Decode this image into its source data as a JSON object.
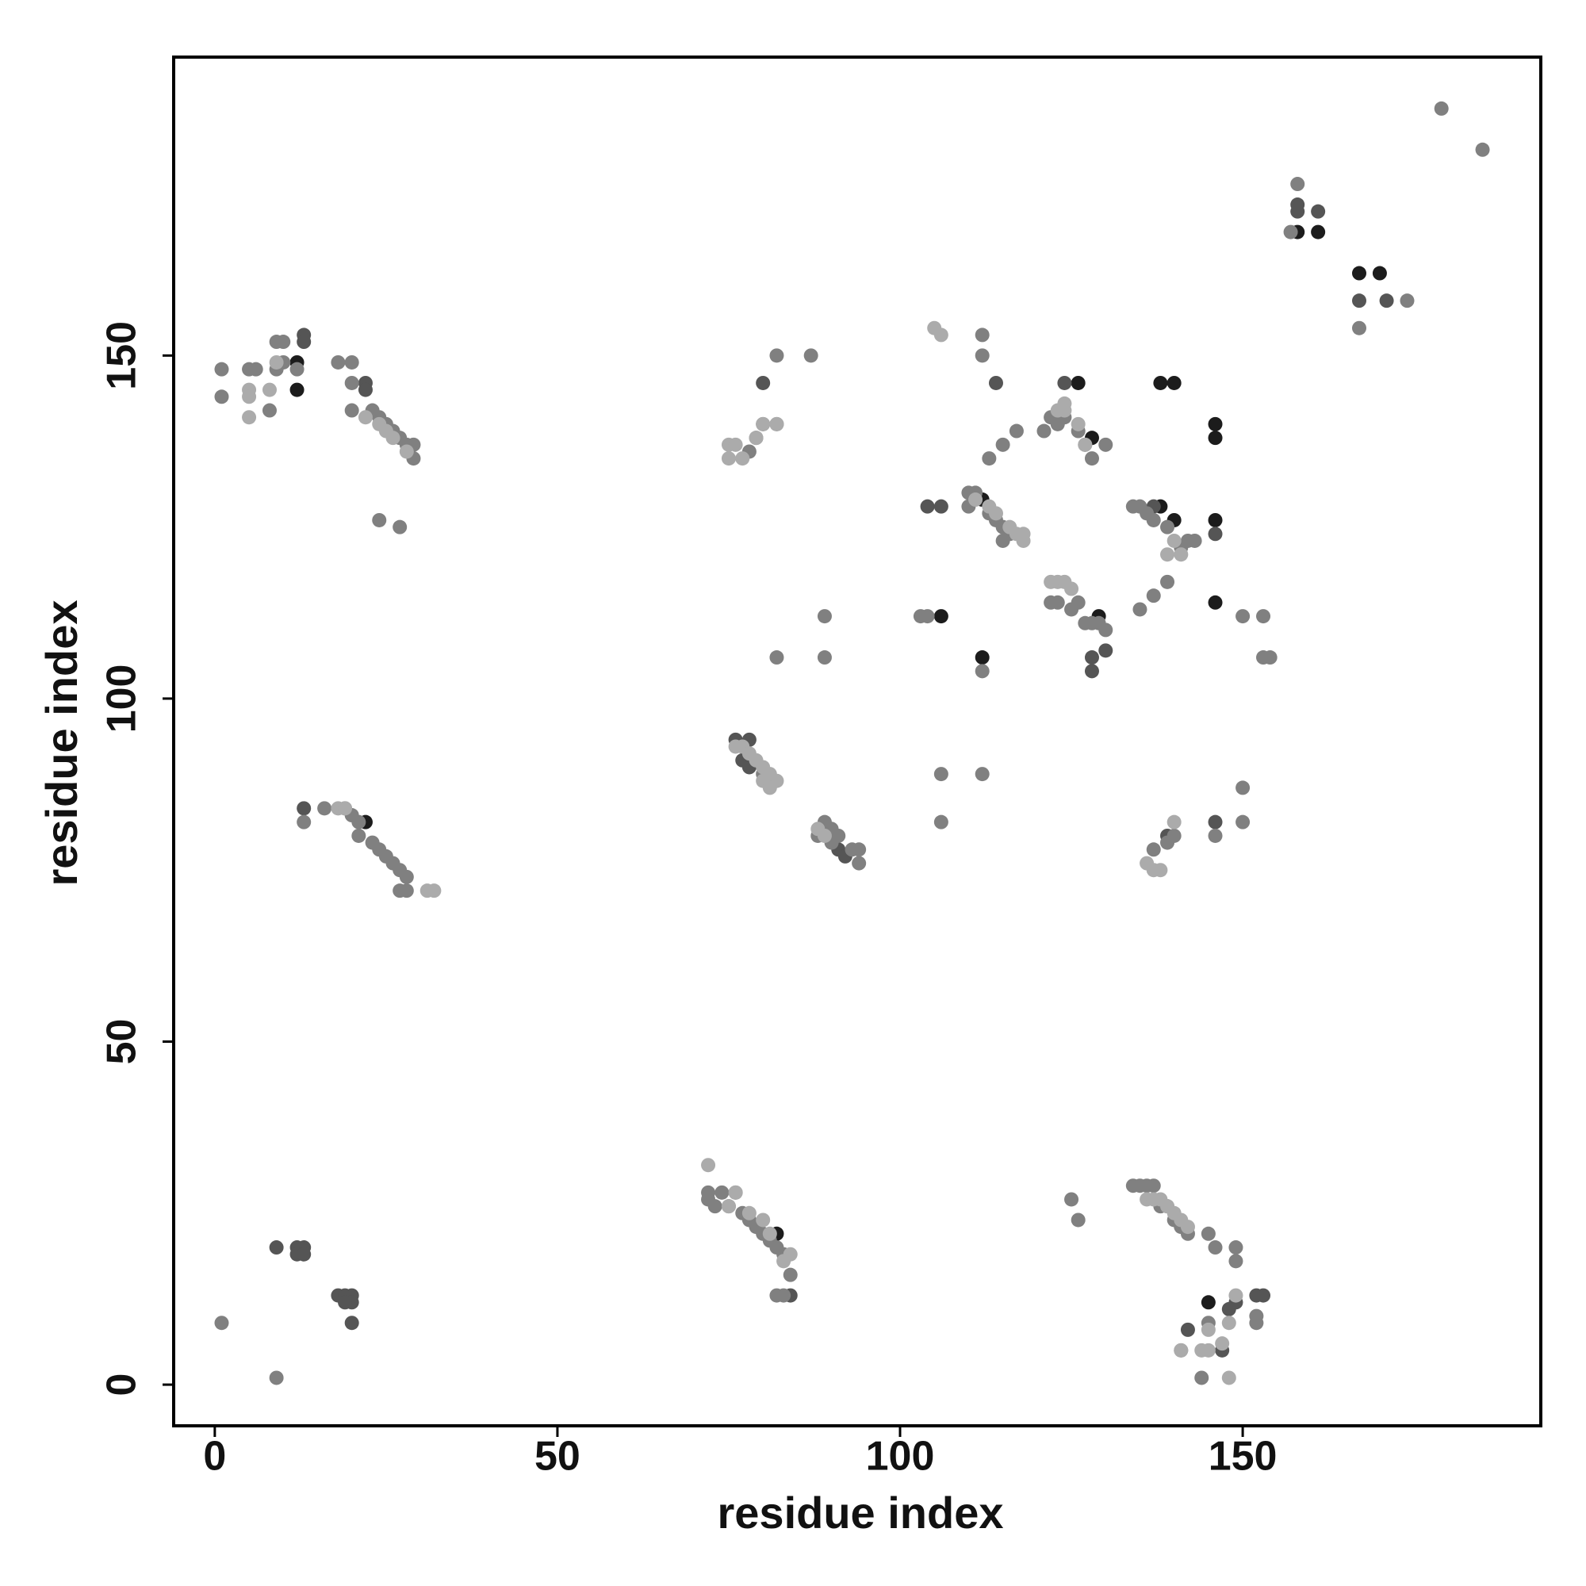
{
  "chart_data": {
    "type": "scatter",
    "x_label": "residue index",
    "y_label": "residue index",
    "xlim": [
      -6,
      193.5
    ],
    "ylim": [
      -6,
      193.5
    ],
    "xticks": [
      0,
      50,
      100,
      150
    ],
    "yticks": [
      0,
      50,
      100,
      150
    ],
    "series": [
      {
        "color": "#1c1c1c",
        "x": [
          12,
          12,
          22,
          82,
          145,
          106,
          112,
          112,
          126,
          128,
          129,
          138,
          140,
          146,
          146,
          138,
          140,
          146,
          146,
          158,
          161,
          167,
          170
        ],
        "values": [
          149,
          145,
          82,
          22,
          12,
          112,
          106,
          129,
          146,
          138,
          112,
          146,
          146,
          140,
          138,
          128,
          126,
          126,
          114,
          168,
          168,
          162,
          162
        ]
      },
      {
        "color": "#555555",
        "x": [
          9,
          12,
          13,
          12,
          13,
          18,
          19,
          20,
          20,
          19,
          20,
          13,
          13,
          13,
          22,
          22,
          77,
          78,
          91,
          92,
          114,
          104,
          106,
          124,
          128,
          130,
          137,
          146,
          149,
          152,
          153,
          142,
          147,
          158,
          158,
          161,
          167,
          171,
          76,
          78,
          128,
          148,
          80,
          84,
          146,
          139
        ],
        "values": [
          20,
          20,
          20,
          19,
          19,
          13,
          13,
          13,
          12,
          12,
          9,
          153,
          152,
          84,
          146,
          145,
          91,
          90,
          78,
          77,
          146,
          128,
          128,
          146,
          106,
          107,
          128,
          124,
          12,
          13,
          13,
          8,
          5,
          172,
          171,
          171,
          158,
          158,
          94,
          94,
          104,
          11,
          146,
          13,
          82,
          80
        ]
      },
      {
        "color": "#808080",
        "x": [
          1,
          9,
          1,
          1,
          5,
          6,
          8,
          9,
          9,
          10,
          10,
          12,
          18,
          20,
          20,
          20,
          23,
          24,
          25,
          26,
          27,
          28,
          29,
          29,
          24,
          27,
          13,
          16,
          19,
          20,
          21,
          21,
          23,
          24,
          25,
          26,
          27,
          28,
          27,
          28,
          72,
          72,
          73,
          74,
          75,
          76,
          77,
          78,
          79,
          80,
          81,
          82,
          83,
          84,
          82,
          83,
          125,
          126,
          134,
          135,
          136,
          137,
          138,
          139,
          140,
          141,
          142,
          145,
          146,
          149,
          149,
          145,
          141,
          144,
          152,
          152,
          80,
          81,
          88,
          89,
          90,
          90,
          91,
          93,
          94,
          94,
          137,
          139,
          140,
          146,
          150,
          150,
          106,
          106,
          112,
          78,
          79,
          80,
          82,
          82,
          87,
          103,
          104,
          89,
          89,
          82,
          112,
          112,
          112,
          110,
          111,
          110,
          113,
          114,
          115,
          116,
          115,
          113,
          115,
          117,
          121,
          122,
          123,
          124,
          126,
          127,
          128,
          130,
          122,
          123,
          125,
          126,
          127,
          128,
          129,
          130,
          134,
          135,
          136,
          137,
          139,
          141,
          142,
          143,
          139,
          137,
          135,
          150,
          153,
          153,
          154,
          157,
          158,
          167,
          174,
          179,
          185
        ],
        "values": [
          9,
          1,
          148,
          144,
          148,
          148,
          142,
          148,
          152,
          152,
          149,
          148,
          149,
          149,
          146,
          142,
          142,
          141,
          140,
          139,
          138,
          137,
          137,
          135,
          126,
          125,
          82,
          84,
          84,
          83,
          82,
          80,
          79,
          78,
          77,
          76,
          75,
          74,
          72,
          72,
          28,
          27,
          26,
          28,
          26,
          28,
          25,
          24,
          23,
          22,
          21,
          20,
          19,
          16,
          13,
          13,
          27,
          24,
          29,
          29,
          29,
          29,
          26,
          26,
          24,
          23,
          22,
          22,
          20,
          20,
          18,
          9,
          5,
          1,
          10,
          9,
          89,
          88,
          80,
          82,
          81,
          79,
          80,
          78,
          78,
          76,
          78,
          79,
          80,
          80,
          82,
          87,
          82,
          89,
          89,
          136,
          138,
          140,
          140,
          150,
          150,
          112,
          112,
          112,
          106,
          106,
          153,
          150,
          104,
          130,
          130,
          128,
          127,
          126,
          125,
          124,
          123,
          135,
          137,
          139,
          139,
          141,
          140,
          141,
          139,
          137,
          135,
          137,
          114,
          114,
          113,
          114,
          111,
          111,
          111,
          110,
          128,
          128,
          127,
          126,
          125,
          122,
          123,
          123,
          117,
          115,
          113,
          112,
          112,
          106,
          106,
          168,
          175,
          154,
          158,
          186,
          180
        ]
      },
      {
        "color": "#ababab",
        "x": [
          5,
          5,
          5,
          8,
          9,
          24,
          25,
          26,
          28,
          31,
          32,
          18,
          19,
          22,
          72,
          75,
          76,
          78,
          80,
          81,
          83,
          84,
          136,
          137,
          138,
          139,
          140,
          141,
          142,
          149,
          148,
          145,
          141,
          144,
          145,
          147,
          148,
          76,
          77,
          78,
          79,
          80,
          81,
          82,
          80,
          81,
          88,
          89,
          136,
          137,
          138,
          140,
          75,
          75,
          76,
          77,
          79,
          80,
          82,
          105,
          106,
          111,
          113,
          114,
          116,
          117,
          118,
          118,
          123,
          124,
          124,
          126,
          127,
          140,
          139,
          141,
          122,
          123,
          124,
          125
        ],
        "values": [
          145,
          144,
          141,
          145,
          149,
          140,
          139,
          138,
          136,
          72,
          72,
          84,
          84,
          141,
          32,
          26,
          28,
          25,
          24,
          22,
          18,
          19,
          27,
          27,
          27,
          26,
          25,
          24,
          23,
          13,
          9,
          8,
          5,
          5,
          5,
          6,
          1,
          93,
          93,
          92,
          91,
          90,
          89,
          88,
          88,
          87,
          81,
          80,
          76,
          75,
          75,
          82,
          137,
          135,
          137,
          135,
          138,
          140,
          140,
          154,
          153,
          129,
          128,
          127,
          125,
          124,
          124,
          123,
          142,
          143,
          142,
          140,
          137,
          123,
          121,
          121,
          117,
          117,
          117,
          116
        ]
      }
    ]
  }
}
